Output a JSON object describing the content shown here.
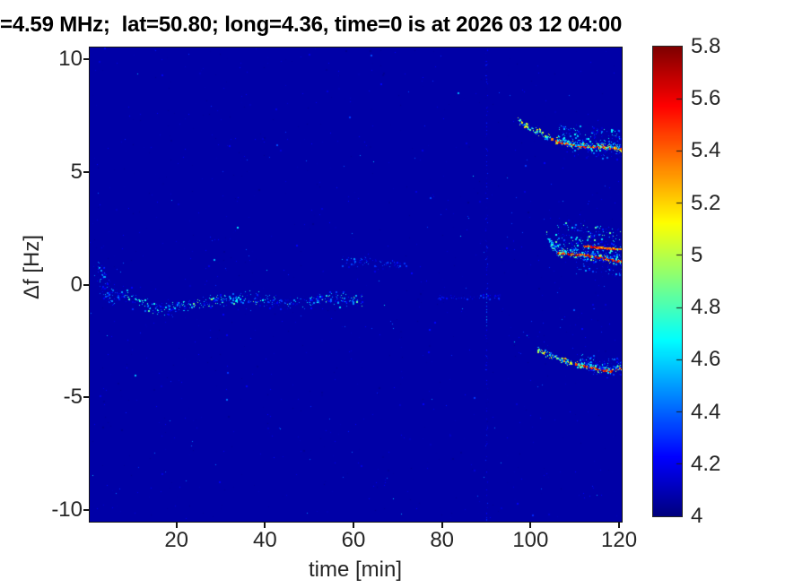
{
  "title": "=4.59 MHz;  lat=50.80; long=4.36, time=0 is at 2026 03 12 04:00",
  "axes": {
    "xlabel": "time [min]",
    "ylabel": "Δf [Hz]",
    "xticks": [
      20,
      40,
      60,
      80,
      100,
      120
    ],
    "yticks": [
      10,
      5,
      0,
      -5,
      -10
    ],
    "xlim": [
      0.4,
      120.6
    ],
    "ylim": [
      -10.5,
      10.5
    ]
  },
  "colorbar": {
    "min": 4,
    "max": 5.8,
    "tick_values": [
      5.8,
      5.6,
      5.4,
      5.2,
      5,
      4.8,
      4.6,
      4.4,
      4.2,
      4
    ],
    "tick_labels": [
      "5.8",
      "5.6",
      "5.4",
      "5.2",
      "5",
      "4.8",
      "4.6",
      "4.4",
      "4.2",
      "4"
    ]
  },
  "chart_data": {
    "type": "heatmap",
    "colormap": "jet",
    "title": "=4.59 MHz;  lat=50.80; long=4.36, time=0 is at 2026 03 12 04:00",
    "xlabel": "time [min]",
    "ylabel": "Δf [Hz]",
    "xlim": [
      0.4,
      120.6
    ],
    "ylim": [
      -10.5,
      10.5
    ],
    "value_range": [
      4,
      5.8
    ],
    "background_value": 4.07,
    "legend_position": "right-colorbar",
    "grid": false,
    "layers": [
      {
        "kind": "noise",
        "name": "faint-background-noise",
        "count": 950,
        "value_min": 4.03,
        "value_max": 4.22,
        "pow": 1.8
      },
      {
        "kind": "noise",
        "name": "sparse-visible-noise",
        "count": 150,
        "value_min": 4.2,
        "value_max": 4.5,
        "pow": 1.6
      },
      {
        "kind": "noise",
        "name": "rare-bright-noise",
        "count": 25,
        "value_min": 4.38,
        "value_max": 4.65,
        "pow": 1.0
      },
      {
        "kind": "noise",
        "name": "right-side-scatter",
        "count": 55,
        "value_min": 4.12,
        "value_max": 4.45,
        "pow": 1.4,
        "t_min": 95,
        "t_max": 120.5,
        "df_min": -3.2,
        "df_max": 5.6
      },
      {
        "kind": "speckle_path",
        "name": "entry-cluster",
        "path": [
          [
            2,
            0.8
          ],
          [
            4,
            0.1
          ],
          [
            6,
            -0.6
          ]
        ],
        "spread": 0.8,
        "count": 65,
        "value_min": 4.1,
        "value_max": 4.6,
        "pow": 1.5
      },
      {
        "kind": "speckle_path",
        "name": "main-doppler-band",
        "path": [
          [
            2,
            0.4
          ],
          [
            3,
            -0.2
          ],
          [
            5,
            -0.7
          ],
          [
            8,
            -0.4
          ],
          [
            11,
            -0.6
          ],
          [
            14,
            -0.95
          ],
          [
            18,
            -1.05
          ],
          [
            22,
            -0.9
          ],
          [
            27,
            -0.75
          ],
          [
            32,
            -0.6
          ],
          [
            38,
            -0.6
          ],
          [
            44,
            -0.8
          ],
          [
            50,
            -0.7
          ],
          [
            56,
            -0.6
          ],
          [
            62,
            -0.65
          ]
        ],
        "spread": 0.45,
        "count": 620,
        "value_min": 4.08,
        "value_max": 4.85,
        "pow": 1.7,
        "bright_segments": [
          [
            10.5,
            14.5
          ],
          [
            20,
            29
          ],
          [
            35,
            41
          ],
          [
            52,
            60
          ]
        ],
        "bright_boost": 0.25
      },
      {
        "kind": "speckle_path",
        "name": "upper-weak-streak",
        "path": [
          [
            57,
            1.0
          ],
          [
            63,
            1.1
          ],
          [
            68,
            0.9
          ],
          [
            72,
            0.85
          ]
        ],
        "spread": 0.35,
        "count": 90,
        "value_min": 4.08,
        "value_max": 4.5,
        "pow": 1.6
      },
      {
        "kind": "speckle_path",
        "name": "pre-event-horizontal-streak",
        "path": [
          [
            79,
            -0.55
          ],
          [
            93,
            -0.5
          ]
        ],
        "spread": 0.15,
        "count": 70,
        "value_min": 4.07,
        "value_max": 4.35,
        "pow": 1.5
      },
      {
        "kind": "vline",
        "name": "interference-stripe-t90",
        "time": 90,
        "count": 230,
        "value_min": 4.06,
        "value_max": 4.32,
        "bright_count": 12,
        "bright_value_min": 4.3,
        "bright_value_max": 4.55
      },
      {
        "kind": "trace",
        "name": "upper-doppler-trace",
        "approach": {
          "path": [
            [
              97,
              7.3
            ],
            [
              99,
              7.05
            ],
            [
              101,
              6.85
            ],
            [
              103,
              6.62
            ],
            [
              104.5,
              6.5
            ]
          ],
          "spread": 0.22,
          "count": 100,
          "value_min": 4.3,
          "value_max": 5.2,
          "pow": 1.6
        },
        "hotspots": [
          {
            "t": 104.6,
            "df": 6.48,
            "value": 5.35,
            "size": 3
          },
          {
            "t": 103.1,
            "df": 6.6,
            "value": 5.0,
            "size": 2
          }
        ],
        "core": {
          "points": [
            [
              105.5,
              6.4
            ],
            [
              107,
              6.3
            ],
            [
              109,
              6.22
            ],
            [
              111,
              6.15
            ],
            [
              113,
              6.1
            ],
            [
              115,
              6.12
            ],
            [
              117,
              6.1
            ],
            [
              119,
              6.08
            ],
            [
              120.5,
              6.03
            ]
          ],
          "value_min": 5.35,
          "value_max": 5.8
        },
        "fringe": {
          "t_min": 105.5,
          "t_max": 120.5,
          "max_dy": 0.16,
          "count": 130,
          "value_min": 4.6,
          "value_max": 5.3
        },
        "cloud_above": {
          "t_min": 106,
          "t_max": 120.5,
          "max_dy": 0.85,
          "count": 230,
          "value_min": 4.12,
          "value_max": 4.75
        },
        "cloud_below": {
          "t_min": 108,
          "t_max": 120.5,
          "max_dy": 0.45,
          "count": 70,
          "value_min": 4.1,
          "value_max": 4.5
        }
      },
      {
        "kind": "trace",
        "name": "middle-doppler-trace",
        "approach": {
          "path": [
            [
              103.5,
              2.25
            ],
            [
              104.8,
              1.75
            ],
            [
              106,
              1.45
            ]
          ],
          "spread": 0.25,
          "count": 55,
          "value_min": 4.25,
          "value_max": 5.0,
          "pow": 1.5
        },
        "hotspots": [],
        "core": {
          "points": [
            [
              106,
              1.45
            ],
            [
              108,
              1.4
            ],
            [
              110,
              1.38
            ],
            [
              112,
              1.32
            ],
            [
              114,
              1.27
            ],
            [
              116,
              1.2
            ],
            [
              118,
              1.12
            ],
            [
              120.5,
              1.05
            ]
          ],
          "value_min": 5.35,
          "value_max": 5.8
        },
        "second_core": {
          "points": [
            [
              112,
              1.72
            ],
            [
              114,
              1.69
            ],
            [
              116,
              1.66
            ],
            [
              118,
              1.62
            ],
            [
              120.5,
              1.58
            ]
          ],
          "value_min": 5.2,
          "value_max": 5.7,
          "gap": 0.4
        },
        "fringe": {
          "t_min": 106,
          "t_max": 120.5,
          "max_dy": 0.18,
          "count": 110,
          "value_min": 4.55,
          "value_max": 5.25
        },
        "cloud_above": {
          "t_min": 105.5,
          "t_max": 120.5,
          "max_dy": 1.35,
          "count": 320,
          "value_min": 4.12,
          "value_max": 4.9
        },
        "cloud_below": {
          "t_min": 110,
          "t_max": 120.5,
          "max_dy": 0.75,
          "count": 85,
          "value_min": 4.1,
          "value_max": 4.55
        }
      },
      {
        "kind": "trace",
        "name": "lower-doppler-trace",
        "approach": {
          "path": [
            [
              101.5,
              -2.85
            ],
            [
              103.5,
              -3.05
            ],
            [
              105.5,
              -3.2
            ],
            [
              107.5,
              -3.35
            ],
            [
              109.5,
              -3.45
            ]
          ],
          "spread": 0.2,
          "count": 120,
          "value_min": 4.3,
          "value_max": 5.3,
          "pow": 1.7
        },
        "hotspots": [
          {
            "t": 107.5,
            "df": -3.35,
            "value": 5.3,
            "size": 2
          },
          {
            "t": 108.8,
            "df": -3.42,
            "value": 5.15,
            "size": 2
          }
        ],
        "core": {
          "points": [
            [
              110,
              -3.5
            ],
            [
              112,
              -3.58
            ],
            [
              114,
              -3.66
            ],
            [
              116,
              -3.76
            ],
            [
              118,
              -3.8
            ],
            [
              120.5,
              -3.66
            ]
          ],
          "value_min": 5.35,
          "value_max": 5.8
        },
        "fringe": {
          "t_min": 110,
          "t_max": 120.5,
          "max_dy": 0.14,
          "count": 80,
          "value_min": 4.6,
          "value_max": 5.2
        },
        "cloud_above": {
          "t_min": 111,
          "t_max": 120.5,
          "max_dy": 0.5,
          "count": 125,
          "value_min": 4.12,
          "value_max": 4.7
        },
        "cloud_below": {
          "t_min": 112,
          "t_max": 120.5,
          "max_dy": 0.3,
          "count": 35,
          "value_min": 4.08,
          "value_max": 4.45
        }
      }
    ]
  }
}
